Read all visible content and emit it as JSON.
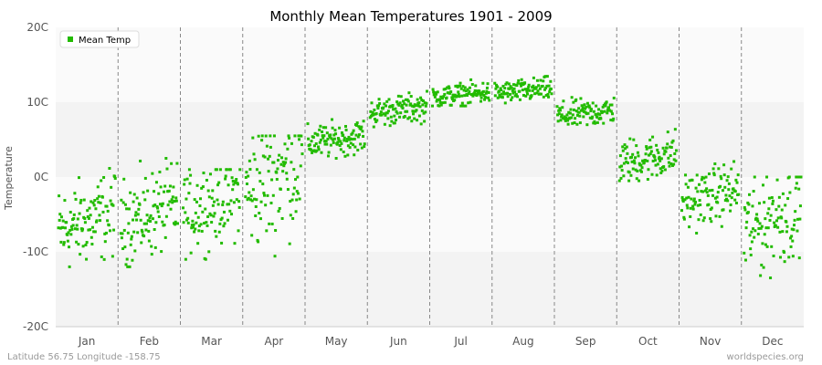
{
  "chart_data": {
    "type": "scatter",
    "title": "Monthly Mean Temperatures 1901 - 2009",
    "xlabel": "",
    "ylabel": "Temperature",
    "categories": [
      "Jan",
      "Feb",
      "Mar",
      "Apr",
      "May",
      "Jun",
      "Jul",
      "Aug",
      "Sep",
      "Oct",
      "Nov",
      "Dec"
    ],
    "y_ticks": [
      "20C",
      "10C",
      "0C",
      "-10C",
      "-20C"
    ],
    "ylim": [
      -20,
      20
    ],
    "grid": "horizontal bands, dashed vertical month separators",
    "legend": {
      "position": "top-left",
      "entries": [
        "Mean Temp"
      ]
    },
    "series": [
      {
        "name": "Mean Temp",
        "color": "#22bb00",
        "years": "1901-2009 (109 values per month)",
        "monthly_summary": {
          "Jan": {
            "center": -6.0,
            "min": -12.0,
            "max": 1.5
          },
          "Feb": {
            "center": -5.0,
            "min": -12.0,
            "max": 2.5
          },
          "Mar": {
            "center": -3.5,
            "min": -11.0,
            "max": 1.0
          },
          "Apr": {
            "center": 0.0,
            "min": -11.0,
            "max": 5.5
          },
          "May": {
            "center": 5.0,
            "min": 2.5,
            "max": 8.0
          },
          "Jun": {
            "center": 9.0,
            "min": 6.5,
            "max": 11.5
          },
          "Jul": {
            "center": 11.0,
            "min": 9.5,
            "max": 13.0
          },
          "Aug": {
            "center": 11.5,
            "min": 9.5,
            "max": 13.5
          },
          "Sep": {
            "center": 8.5,
            "min": 6.5,
            "max": 11.0
          },
          "Oct": {
            "center": 2.5,
            "min": -0.5,
            "max": 6.5
          },
          "Nov": {
            "center": -2.5,
            "min": -7.5,
            "max": 2.5
          },
          "Dec": {
            "center": -5.5,
            "min": -14.5,
            "max": 0.0
          }
        }
      }
    ]
  },
  "footer": {
    "location": "Latitude 56.75 Longitude -158.75",
    "source": "worldspecies.org"
  },
  "colors": {
    "band_light": "#fafafa",
    "band_dark": "#f3f3f3",
    "point": "#22bb00",
    "separator": "#888888"
  }
}
